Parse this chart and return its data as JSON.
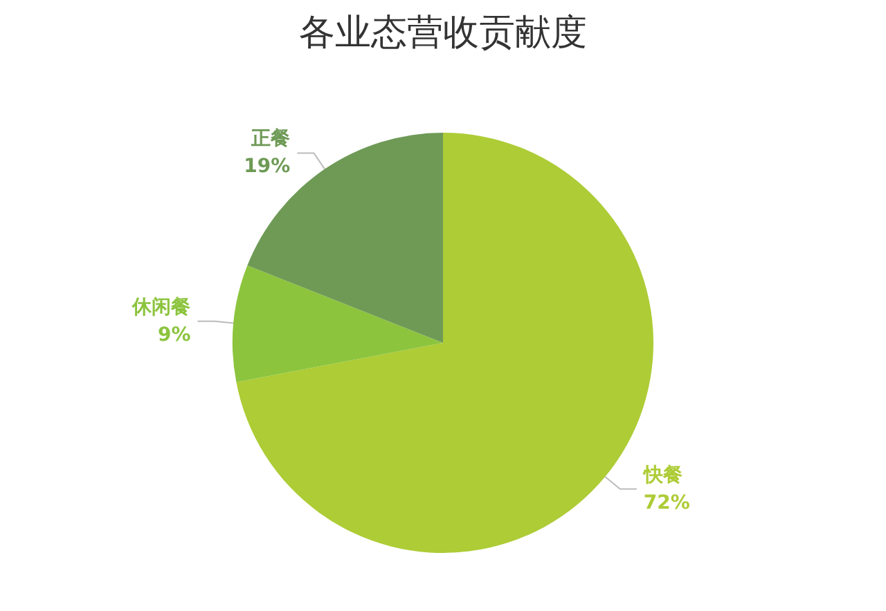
{
  "chart_data": {
    "type": "pie",
    "title": "各业态营收贡献度",
    "categories": [
      "快餐",
      "休闲餐",
      "正餐"
    ],
    "values": [
      72,
      9,
      19
    ],
    "value_labels": [
      "72%",
      "9%",
      "19%"
    ],
    "colors": [
      "#adcc36",
      "#8cc43e",
      "#6e9a56"
    ],
    "legend": false
  }
}
